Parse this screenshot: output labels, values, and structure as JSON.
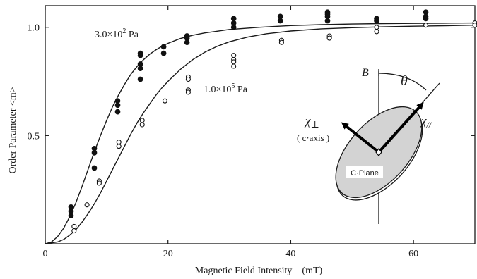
{
  "chart_data": {
    "type": "scatter",
    "xlabel": "Magnetic Field Intensity　(mT)",
    "ylabel": "Order Parameter <m>",
    "xlim": [
      0,
      70
    ],
    "ylim": [
      0,
      1.1
    ],
    "x_ticks": [
      0,
      20,
      40,
      60
    ],
    "y_ticks": [
      0.5,
      1.0
    ],
    "x_tick_labels": [
      "0",
      "20",
      "40",
      "60"
    ],
    "y_tick_labels": [
      "0.5",
      "1.0"
    ],
    "grid": false,
    "series": [
      {
        "label_base": "3.0×10",
        "label_exp": "2",
        "label_unit": " Pa",
        "marker": "filled-circle",
        "points": [
          [
            4.2,
            0.17
          ],
          [
            4.2,
            0.15
          ],
          [
            4.2,
            0.13
          ],
          [
            8.0,
            0.44
          ],
          [
            8.0,
            0.42
          ],
          [
            8.0,
            0.35
          ],
          [
            11.8,
            0.66
          ],
          [
            11.8,
            0.64
          ],
          [
            11.8,
            0.61
          ],
          [
            15.5,
            0.88
          ],
          [
            15.5,
            0.87
          ],
          [
            15.5,
            0.83
          ],
          [
            15.5,
            0.81
          ],
          [
            15.5,
            0.76
          ],
          [
            19.3,
            0.91
          ],
          [
            19.3,
            0.88
          ],
          [
            23.1,
            0.96
          ],
          [
            23.1,
            0.95
          ],
          [
            23.1,
            0.93
          ],
          [
            30.7,
            1.04
          ],
          [
            30.7,
            1.02
          ],
          [
            30.7,
            1.0
          ],
          [
            38.3,
            1.05
          ],
          [
            38.3,
            1.03
          ],
          [
            46.0,
            1.07
          ],
          [
            46.0,
            1.06
          ],
          [
            46.0,
            1.05
          ],
          [
            46.0,
            1.03
          ],
          [
            54.0,
            1.04
          ],
          [
            54.0,
            1.03
          ],
          [
            62.0,
            1.07
          ],
          [
            62.0,
            1.05
          ],
          [
            62.0,
            1.04
          ]
        ],
        "curve": [
          [
            0,
            0
          ],
          [
            1,
            0.008
          ],
          [
            2,
            0.033
          ],
          [
            3,
            0.072
          ],
          [
            4,
            0.125
          ],
          [
            5,
            0.19
          ],
          [
            6,
            0.265
          ],
          [
            7,
            0.345
          ],
          [
            8,
            0.425
          ],
          [
            9,
            0.5
          ],
          [
            10,
            0.57
          ],
          [
            11,
            0.635
          ],
          [
            12,
            0.69
          ],
          [
            13,
            0.74
          ],
          [
            14,
            0.785
          ],
          [
            15,
            0.82
          ],
          [
            16,
            0.85
          ],
          [
            17,
            0.875
          ],
          [
            18,
            0.895
          ],
          [
            19,
            0.912
          ],
          [
            20,
            0.926
          ],
          [
            22,
            0.948
          ],
          [
            24,
            0.963
          ],
          [
            26,
            0.974
          ],
          [
            28,
            0.982
          ],
          [
            30,
            0.99
          ],
          [
            35,
            1.0
          ],
          [
            40,
            1.008
          ],
          [
            45,
            1.012
          ],
          [
            50,
            1.015
          ],
          [
            55,
            1.017
          ],
          [
            60,
            1.018
          ],
          [
            65,
            1.019
          ],
          [
            70,
            1.02
          ]
        ]
      },
      {
        "label_base": "1.0×10",
        "label_exp": "5",
        "label_unit": " Pa",
        "marker": "open-circle",
        "points": [
          [
            4.7,
            0.08
          ],
          [
            4.7,
            0.06
          ],
          [
            6.8,
            0.18
          ],
          [
            8.8,
            0.29
          ],
          [
            8.8,
            0.28
          ],
          [
            12.0,
            0.47
          ],
          [
            12.0,
            0.45
          ],
          [
            15.8,
            0.57
          ],
          [
            15.8,
            0.55
          ],
          [
            19.5,
            0.66
          ],
          [
            23.3,
            0.77
          ],
          [
            23.3,
            0.76
          ],
          [
            23.3,
            0.71
          ],
          [
            23.3,
            0.7
          ],
          [
            30.7,
            0.87
          ],
          [
            30.7,
            0.85
          ],
          [
            30.7,
            0.84
          ],
          [
            30.7,
            0.82
          ],
          [
            38.5,
            0.94
          ],
          [
            38.5,
            0.93
          ],
          [
            46.3,
            0.96
          ],
          [
            46.3,
            0.95
          ],
          [
            54.0,
            1.0
          ],
          [
            54.0,
            0.98
          ],
          [
            62.0,
            1.01
          ],
          [
            70.0,
            1.02
          ],
          [
            70.0,
            1.01
          ]
        ],
        "curve": [
          [
            0,
            0
          ],
          [
            2,
            0.008
          ],
          [
            3,
            0.02
          ],
          [
            4,
            0.04
          ],
          [
            5,
            0.065
          ],
          [
            6,
            0.1
          ],
          [
            7,
            0.14
          ],
          [
            8,
            0.185
          ],
          [
            9,
            0.235
          ],
          [
            10,
            0.29
          ],
          [
            11,
            0.345
          ],
          [
            12,
            0.4
          ],
          [
            13,
            0.455
          ],
          [
            14,
            0.51
          ],
          [
            15,
            0.56
          ],
          [
            16,
            0.605
          ],
          [
            17,
            0.645
          ],
          [
            18,
            0.685
          ],
          [
            19,
            0.72
          ],
          [
            20,
            0.75
          ],
          [
            22,
            0.805
          ],
          [
            24,
            0.85
          ],
          [
            26,
            0.885
          ],
          [
            28,
            0.912
          ],
          [
            30,
            0.933
          ],
          [
            33,
            0.955
          ],
          [
            36,
            0.97
          ],
          [
            40,
            0.983
          ],
          [
            45,
            0.993
          ],
          [
            50,
            0.998
          ],
          [
            55,
            1.002
          ],
          [
            60,
            1.005
          ],
          [
            65,
            1.007
          ],
          [
            70,
            1.01
          ]
        ]
      }
    ],
    "inset": {
      "field_label": "B",
      "angle_label": "θ",
      "perp_label": "χ",
      "perp_sub": "⊥",
      "parallel_label": "χ",
      "parallel_sub": "//",
      "caxis_label": "( c·axis )",
      "plane_label": "C·Plane",
      "plane_color": "#d3d3d3"
    }
  }
}
